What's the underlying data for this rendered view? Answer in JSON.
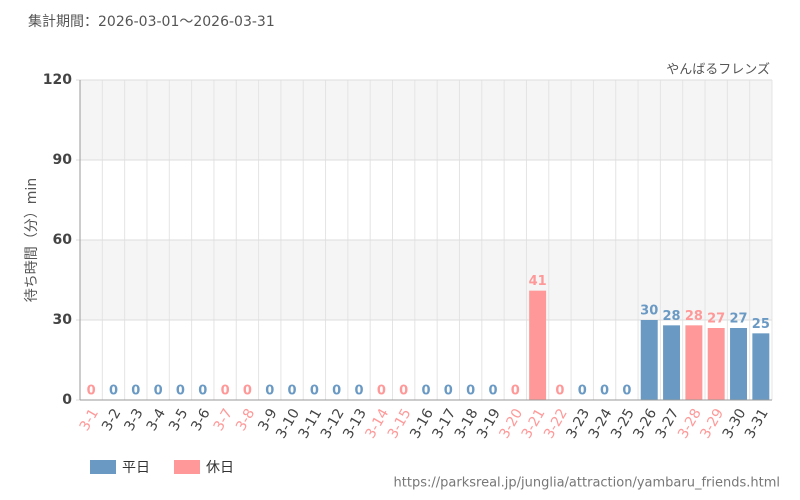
{
  "chart_data": {
    "type": "bar",
    "title": "集計期間：2026-03-01～2026-03-31",
    "subtitle": "やんばるフレンズ",
    "y_label": "待ち時間（分）min",
    "source": "https://parksreal.jp/junglia/attraction/yambaru_friends.html",
    "categories": [
      "3-1",
      "3-2",
      "3-3",
      "3-4",
      "3-5",
      "3-6",
      "3-7",
      "3-8",
      "3-9",
      "3-10",
      "3-11",
      "3-12",
      "3-13",
      "3-14",
      "3-15",
      "3-16",
      "3-17",
      "3-18",
      "3-19",
      "3-20",
      "3-21",
      "3-22",
      "3-23",
      "3-24",
      "3-25",
      "3-26",
      "3-27",
      "3-28",
      "3-29",
      "3-30",
      "3-31"
    ],
    "series": [
      {
        "name": "平日",
        "color": "#6a9ac4",
        "values": [
          null,
          0,
          0,
          0,
          0,
          0,
          null,
          null,
          0,
          0,
          0,
          0,
          0,
          null,
          null,
          0,
          0,
          0,
          0,
          null,
          null,
          null,
          0,
          0,
          0,
          30,
          28,
          null,
          null,
          27,
          25
        ]
      },
      {
        "name": "休日",
        "color": "#ff9999",
        "values": [
          0,
          null,
          null,
          null,
          null,
          null,
          0,
          0,
          null,
          null,
          null,
          null,
          null,
          0,
          0,
          null,
          null,
          null,
          null,
          0,
          41,
          0,
          null,
          null,
          null,
          null,
          null,
          28,
          27,
          null,
          null
        ]
      }
    ],
    "ylim": [
      0,
      120
    ],
    "yticks": [
      0,
      30,
      60,
      90,
      120
    ],
    "grid": true,
    "legend": "bottom-left"
  }
}
